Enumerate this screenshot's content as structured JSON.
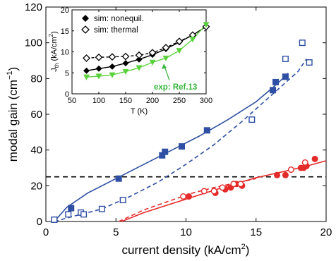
{
  "chart_data": [
    {
      "id": "main",
      "type": "scatter",
      "xlabel": "current density (kA/cm",
      "xlabel_sup": "2",
      "xlabel_end": ")",
      "ylabel": "modal gain (cm",
      "ylabel_sup": "−1",
      "ylabel_end": ")",
      "xlim": [
        0,
        20
      ],
      "ylim": [
        0,
        120
      ],
      "xticks": [
        0,
        5,
        10,
        15,
        20
      ],
      "yticks": [
        0,
        20,
        40,
        60,
        80,
        100,
        120
      ],
      "grid": false,
      "threshold_line": {
        "y": 25,
        "color": "#000000",
        "style": "dashed"
      },
      "series": [
        {
          "marker": "filled-square",
          "color": "#2e4fa3",
          "x": [
            0.6,
            1.8,
            5.2,
            8.3,
            8.5,
            9.7,
            11.5,
            16.2,
            16.4,
            17.1
          ],
          "y": [
            1,
            7.5,
            24,
            37,
            39,
            42,
            51,
            73.5,
            78,
            81
          ]
        },
        {
          "marker": "open-square",
          "color": "#2e4fa3",
          "x": [
            0.6,
            1.6,
            2.5,
            2.7,
            4.0,
            5.5,
            14.7,
            17.1,
            18.3,
            18.8
          ],
          "y": [
            1,
            4,
            5,
            4,
            7,
            12,
            57,
            91,
            100,
            89
          ]
        },
        {
          "marker": "filled-circle",
          "color": "#e52a2a",
          "x": [
            10.2,
            12.1,
            12.8,
            13.2,
            13.6,
            14.0,
            16.5,
            17.1,
            18.2,
            18.4,
            18.6,
            19.2
          ],
          "y": [
            14,
            16,
            18,
            19,
            21,
            20,
            26,
            26,
            30,
            30,
            31,
            35
          ]
        },
        {
          "marker": "open-circle",
          "color": "#e52a2a",
          "x": [
            9.8,
            11.3,
            12.0,
            12.6,
            13.4,
            13.9,
            17.5,
            18.5
          ],
          "y": [
            14,
            17,
            17,
            19,
            21,
            21,
            29,
            33
          ]
        },
        {
          "marker": "line-solid",
          "color": "#2e4fa3",
          "x": [
            0.6,
            1.5,
            3,
            5,
            7,
            9,
            11,
            13,
            15,
            16.5,
            17.3
          ],
          "y": [
            0,
            8,
            16,
            24,
            32,
            40,
            48,
            57,
            67,
            77,
            83
          ]
        },
        {
          "marker": "line-dashed",
          "color": "#2e4fa3",
          "x": [
            0.6,
            2,
            4,
            6,
            8,
            10,
            12,
            14,
            16,
            18,
            18.6
          ],
          "y": [
            0,
            3,
            7,
            14,
            22,
            32,
            43,
            56,
            70,
            84,
            91
          ]
        },
        {
          "marker": "line-solid",
          "color": "#e52a2a",
          "x": [
            5.4,
            7,
            9,
            11,
            13,
            15,
            17,
            18.6,
            20
          ],
          "y": [
            0,
            5,
            10,
            15,
            20,
            24.5,
            28,
            31,
            34
          ]
        },
        {
          "marker": "line-dashed",
          "color": "#e52a2a",
          "x": [
            5.2,
            7,
            9,
            10.5,
            12,
            13.5,
            15
          ],
          "y": [
            0,
            6.5,
            12,
            16,
            19,
            21.5,
            24
          ]
        }
      ]
    },
    {
      "id": "inset",
      "type": "line",
      "xlabel": "T (K)",
      "ylabel": "J",
      "ylabel_sub": "th",
      "ylabel_end": " (kA/cm",
      "ylabel_sup": "2",
      "ylabel_close": ")",
      "xlim": [
        50,
        300
      ],
      "ylim": [
        0,
        20
      ],
      "xticks": [
        50,
        100,
        150,
        200,
        250,
        300
      ],
      "yticks": [
        0,
        5,
        10,
        15,
        20
      ],
      "legend_position": "top-left",
      "annotation": "exp: Ref.13",
      "series": [
        {
          "name": "sim: nonequil.",
          "marker": "filled-diamond",
          "color": "#000000",
          "x": [
            77,
            100,
            125,
            150,
            175,
            200,
            225,
            250,
            275,
            300
          ],
          "y": [
            5.5,
            6.0,
            6.5,
            7.3,
            8.2,
            9.3,
            10.7,
            12.3,
            14.0,
            16.0
          ]
        },
        {
          "name": "sim: thermal",
          "marker": "open-diamond",
          "color": "#000000",
          "x": [
            77,
            100,
            125,
            150,
            175,
            200,
            225,
            250,
            275,
            300
          ],
          "y": [
            8.5,
            8.7,
            8.8,
            8.9,
            9.2,
            9.8,
            11.0,
            12.5,
            14.0,
            16.0
          ]
        },
        {
          "marker": "filled-triangle-down",
          "color": "#5bd13c",
          "x": [
            77,
            100,
            125,
            150,
            175,
            200,
            225,
            250,
            275,
            300
          ],
          "y": [
            4.0,
            4.2,
            4.5,
            5.3,
            6.2,
            7.5,
            8.5,
            10.3,
            13.0,
            16.5
          ]
        }
      ]
    }
  ]
}
